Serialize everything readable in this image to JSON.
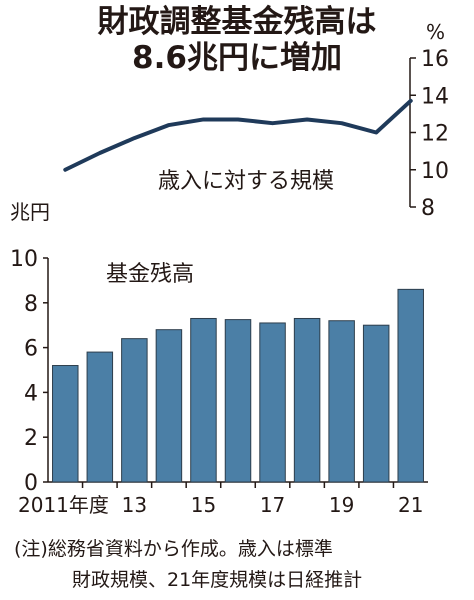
{
  "title_line1": "財政調整基金残高は",
  "title_line2": "8.6兆円に増加",
  "unit_right": "%",
  "unit_left": "兆円",
  "note_line1": "(注)総務省資料から作成。歳入は標準",
  "note_line2": "財政規模、21年度規模は日経推計",
  "colors": {
    "bar": "#4b7fa6",
    "bar_edge": "#2d3e4c",
    "line": "#1f3a5a",
    "text": "#231815"
  },
  "chart_data": [
    {
      "type": "bar",
      "title": "財政調整基金残高は8.6兆円に増加",
      "series": [
        {
          "name": "基金残高",
          "values": [
            5.2,
            5.8,
            6.4,
            6.8,
            7.3,
            7.25,
            7.1,
            7.3,
            7.2,
            7.0,
            8.6
          ]
        }
      ],
      "categories": [
        "2011年度",
        "12",
        "13",
        "14",
        "15",
        "16",
        "17",
        "18",
        "19",
        "20",
        "21"
      ],
      "x_tick_labels": [
        "2011年度",
        "13",
        "15",
        "17",
        "19",
        "21"
      ],
      "ylabel": "兆円",
      "ylim": [
        0,
        10
      ],
      "y_ticks": [
        0,
        2,
        4,
        6,
        8,
        10
      ],
      "grid": false
    },
    {
      "type": "line",
      "series": [
        {
          "name": "歳入に対する規模",
          "values": [
            10.0,
            10.9,
            11.7,
            12.4,
            12.7,
            12.7,
            12.5,
            12.7,
            12.5,
            12.0,
            13.7
          ]
        }
      ],
      "categories": [
        "2011年度",
        "12",
        "13",
        "14",
        "15",
        "16",
        "17",
        "18",
        "19",
        "20",
        "21"
      ],
      "ylabel": "%",
      "ylim": [
        8,
        16
      ],
      "y_ticks": [
        8,
        10,
        12,
        14,
        16
      ],
      "axis_position": "right",
      "grid": false
    }
  ]
}
